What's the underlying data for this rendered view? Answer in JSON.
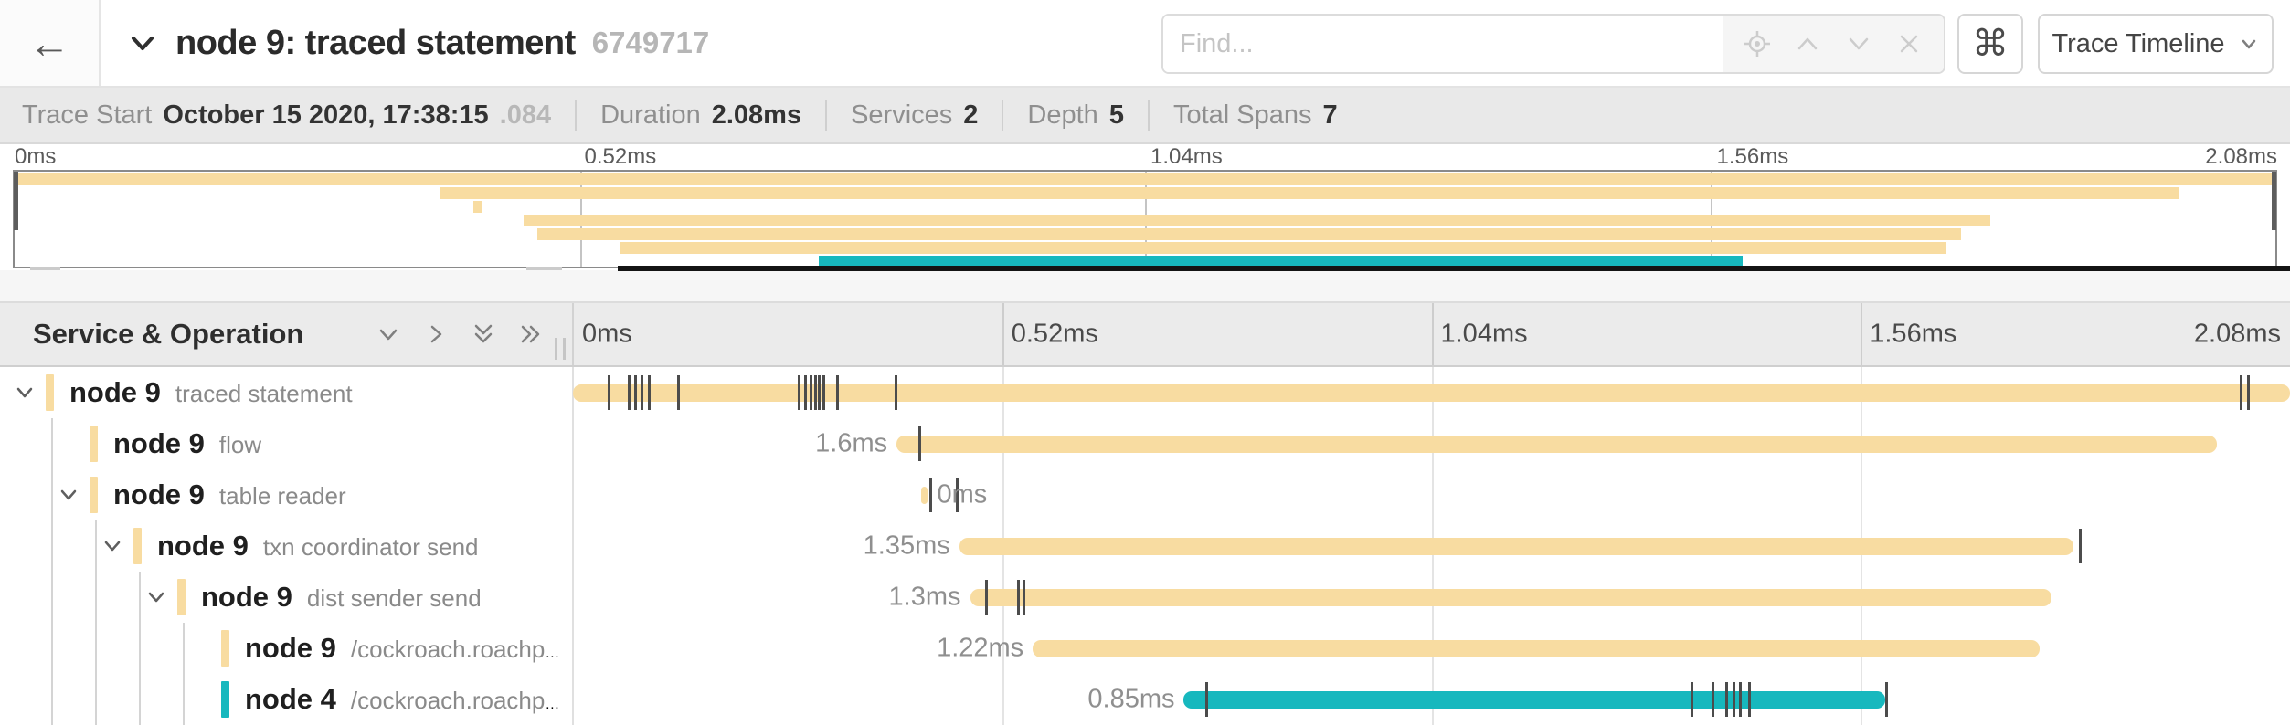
{
  "colors": {
    "tan": "#F8DCA1",
    "teal": "#17B8BE",
    "tick": "#4c4c4c"
  },
  "header": {
    "back_icon": "arrow-left",
    "back_glyph": "←",
    "title": "node 9: traced statement",
    "trace_id": "6749717",
    "find_placeholder": "Find...",
    "find_icons": [
      "locate-icon",
      "chevron-up-icon",
      "chevron-down-icon",
      "close-icon"
    ],
    "shortcut_glyph": "⌘",
    "view_dropdown_label": "Trace Timeline"
  },
  "summary": {
    "items": [
      {
        "label": "Trace Start",
        "value": "October 15 2020, 17:38:15",
        "suffix": ".084"
      },
      {
        "label": "Duration",
        "value": "2.08ms",
        "suffix": ""
      },
      {
        "label": "Services",
        "value": "2",
        "suffix": ""
      },
      {
        "label": "Depth",
        "value": "5",
        "suffix": ""
      },
      {
        "label": "Total Spans",
        "value": "7",
        "suffix": ""
      }
    ]
  },
  "timeline": {
    "total_ms": 2.08,
    "ticks": [
      "0ms",
      "0.52ms",
      "1.04ms",
      "1.56ms",
      "2.08ms"
    ],
    "left_header_title": "Service & Operation",
    "collapse_icons": [
      "chevron-down-icon",
      "chevron-right-icon",
      "double-chevron-down-icon",
      "double-chevron-right-icon"
    ]
  },
  "spans": [
    {
      "service": "node 9",
      "operation": "traced statement",
      "color": "tan",
      "start_ms": 0,
      "duration_ms": 2.08,
      "duration_label": "",
      "label_side": "none",
      "depth": 0,
      "has_children": true,
      "ticks_ms": [
        0.042,
        0.066,
        0.074,
        0.082,
        0.091,
        0.126,
        0.272,
        0.28,
        0.287,
        0.292,
        0.297,
        0.302,
        0.319,
        0.39,
        2.019,
        2.028
      ]
    },
    {
      "service": "node 9",
      "operation": "flow",
      "color": "tan",
      "start_ms": 0.392,
      "duration_ms": 1.6,
      "duration_label": "1.6ms",
      "label_side": "left",
      "depth": 1,
      "has_children": false,
      "ticks_ms": [
        0.418
      ]
    },
    {
      "service": "node 9",
      "operation": "table reader",
      "color": "tan",
      "start_ms": 0.422,
      "duration_ms": 0.008,
      "duration_label": "0ms",
      "label_side": "right",
      "depth": 1,
      "has_children": true,
      "ticks_ms": [
        0.432,
        0.464
      ]
    },
    {
      "service": "node 9",
      "operation": "txn coordinator send",
      "color": "tan",
      "start_ms": 0.468,
      "duration_ms": 1.35,
      "duration_label": "1.35ms",
      "label_side": "left",
      "depth": 2,
      "has_children": true,
      "ticks_ms": [
        1.824
      ]
    },
    {
      "service": "node 9",
      "operation": "dist sender send",
      "color": "tan",
      "start_ms": 0.481,
      "duration_ms": 1.31,
      "duration_label": "1.3ms",
      "label_side": "left",
      "depth": 3,
      "has_children": true,
      "ticks_ms": [
        0.499,
        0.538,
        0.545
      ]
    },
    {
      "service": "node 9",
      "operation": "/cockroach.roachpb.I…",
      "color": "tan",
      "start_ms": 0.557,
      "duration_ms": 1.22,
      "duration_label": "1.22ms",
      "label_side": "left",
      "depth": 4,
      "has_children": false,
      "ticks_ms": []
    },
    {
      "service": "node 4",
      "operation": "/cockroach.roachpb.I…",
      "color": "teal",
      "start_ms": 0.74,
      "duration_ms": 0.85,
      "duration_label": "0.85ms",
      "label_side": "left",
      "depth": 4,
      "has_children": false,
      "ticks_ms": [
        0.766,
        1.354,
        1.379,
        1.396,
        1.405,
        1.413,
        1.424,
        1.59
      ]
    }
  ]
}
